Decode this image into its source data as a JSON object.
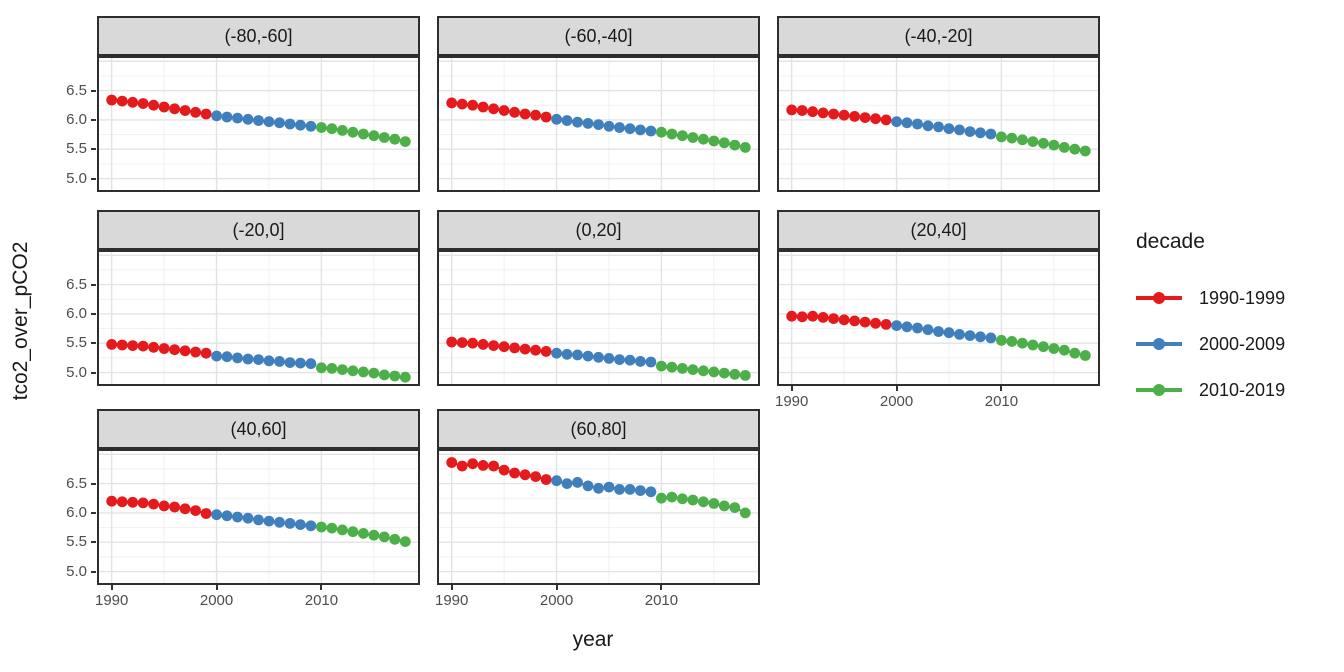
{
  "chart_data": {
    "type": "scatter",
    "title": "",
    "xlabel": "year",
    "ylabel": "tco2_over_pCO2",
    "x": [
      1990,
      1991,
      1992,
      1993,
      1994,
      1995,
      1996,
      1997,
      1998,
      1999,
      2000,
      2001,
      2002,
      2003,
      2004,
      2005,
      2006,
      2007,
      2008,
      2009,
      2010,
      2011,
      2012,
      2013,
      2014,
      2015,
      2016,
      2017,
      2018
    ],
    "x_ticks": [
      1990,
      2000,
      2010
    ],
    "y_ticks": [
      6.5,
      6.0,
      5.5,
      5.0
    ],
    "xlim": [
      1988.6,
      2019.4
    ],
    "ylim": [
      4.77,
      7.09
    ],
    "grid": {
      "on": true,
      "x_major": [
        1990,
        2000,
        2010
      ],
      "x_minor": [
        1995,
        2005,
        2015
      ],
      "y_major": [
        5.0,
        5.5,
        6.0,
        6.5,
        7.0
      ],
      "y_minor": [
        5.25,
        5.75,
        6.25,
        6.75
      ]
    },
    "legend": {
      "title": "decade",
      "position": "right",
      "entries": [
        {
          "label": "1990-1999",
          "color": "#e41a1c",
          "from": 1990,
          "to": 1999
        },
        {
          "label": "2000-2009",
          "color": "#3f80bc",
          "from": 2000,
          "to": 2009
        },
        {
          "label": "2010-2019",
          "color": "#4daf4a",
          "from": 2010,
          "to": 2019
        }
      ]
    },
    "facets": [
      {
        "label": "(-80,-60]",
        "values": [
          6.34,
          6.32,
          6.3,
          6.28,
          6.25,
          6.22,
          6.19,
          6.16,
          6.13,
          6.1,
          6.07,
          6.05,
          6.03,
          6.01,
          5.99,
          5.97,
          5.95,
          5.93,
          5.91,
          5.89,
          5.87,
          5.85,
          5.82,
          5.79,
          5.76,
          5.73,
          5.7,
          5.67,
          5.63
        ]
      },
      {
        "label": "(-60,-40]",
        "values": [
          6.29,
          6.27,
          6.25,
          6.22,
          6.19,
          6.16,
          6.13,
          6.1,
          6.08,
          6.05,
          6.01,
          5.99,
          5.96,
          5.94,
          5.92,
          5.89,
          5.87,
          5.85,
          5.83,
          5.81,
          5.79,
          5.76,
          5.73,
          5.7,
          5.67,
          5.64,
          5.61,
          5.57,
          5.53
        ]
      },
      {
        "label": "(-40,-20]",
        "values": [
          6.17,
          6.16,
          6.14,
          6.12,
          6.1,
          6.08,
          6.06,
          6.04,
          6.02,
          6.0,
          5.97,
          5.95,
          5.93,
          5.9,
          5.88,
          5.85,
          5.83,
          5.8,
          5.78,
          5.76,
          5.71,
          5.69,
          5.66,
          5.63,
          5.6,
          5.57,
          5.53,
          5.5,
          5.47
        ]
      },
      {
        "label": "(-20,0]",
        "values": [
          5.48,
          5.47,
          5.46,
          5.45,
          5.43,
          5.41,
          5.39,
          5.37,
          5.35,
          5.33,
          5.28,
          5.27,
          5.25,
          5.23,
          5.22,
          5.2,
          5.19,
          5.17,
          5.16,
          5.15,
          5.08,
          5.07,
          5.05,
          5.03,
          5.01,
          4.99,
          4.96,
          4.94,
          4.92
        ]
      },
      {
        "label": "(0,20]",
        "values": [
          5.52,
          5.51,
          5.5,
          5.48,
          5.46,
          5.44,
          5.42,
          5.4,
          5.38,
          5.36,
          5.33,
          5.31,
          5.3,
          5.28,
          5.26,
          5.24,
          5.22,
          5.21,
          5.19,
          5.18,
          5.11,
          5.09,
          5.07,
          5.05,
          5.03,
          5.01,
          4.99,
          4.97,
          4.95
        ]
      },
      {
        "label": "(20,40]",
        "values": [
          5.96,
          5.95,
          5.96,
          5.94,
          5.92,
          5.9,
          5.88,
          5.86,
          5.84,
          5.82,
          5.8,
          5.78,
          5.76,
          5.73,
          5.7,
          5.68,
          5.65,
          5.63,
          5.61,
          5.59,
          5.55,
          5.53,
          5.5,
          5.47,
          5.44,
          5.41,
          5.38,
          5.33,
          5.29
        ]
      },
      {
        "label": "(40,60]",
        "values": [
          6.2,
          6.19,
          6.18,
          6.17,
          6.15,
          6.12,
          6.1,
          6.07,
          6.04,
          5.99,
          5.97,
          5.95,
          5.93,
          5.91,
          5.88,
          5.86,
          5.84,
          5.82,
          5.8,
          5.78,
          5.76,
          5.74,
          5.71,
          5.68,
          5.65,
          5.62,
          5.59,
          5.55,
          5.51
        ]
      },
      {
        "label": "(60,80]",
        "values": [
          6.86,
          6.8,
          6.84,
          6.81,
          6.8,
          6.73,
          6.68,
          6.65,
          6.62,
          6.57,
          6.55,
          6.5,
          6.52,
          6.46,
          6.42,
          6.44,
          6.4,
          6.4,
          6.38,
          6.36,
          6.25,
          6.27,
          6.24,
          6.22,
          6.19,
          6.16,
          6.12,
          6.09,
          6.0
        ]
      }
    ],
    "style_colors": {
      "strip_background": "#d9d9d9",
      "panel_border": "#2e2e2e",
      "grid_major": "#e3e3e3",
      "grid_minor": "#f1f1f1",
      "tick_text": "#4d4d4d",
      "title_text": "#1a1a1a"
    }
  }
}
